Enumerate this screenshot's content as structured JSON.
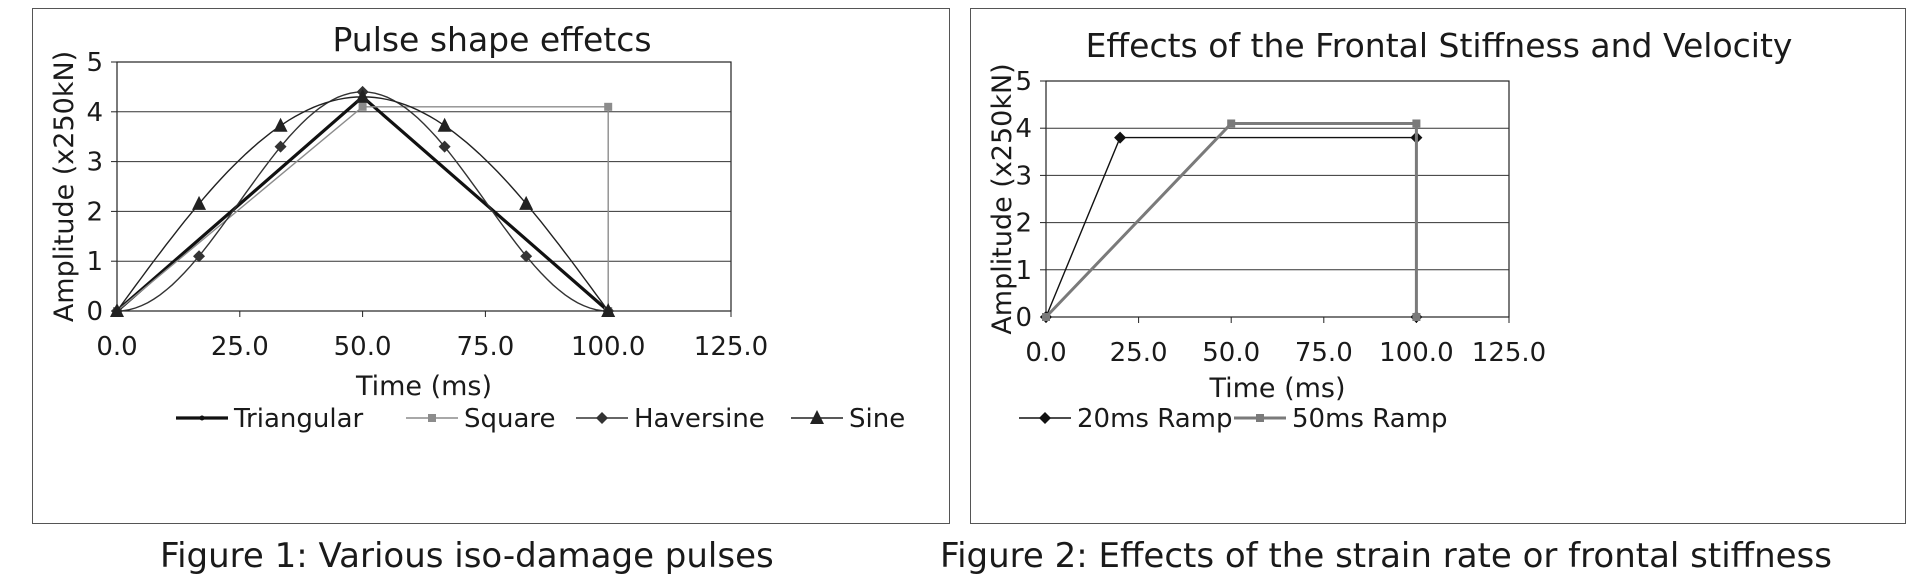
{
  "chart_data": [
    {
      "type": "line",
      "title": "Pulse shape effetcs",
      "xlabel": "Time (ms)",
      "ylabel": "Amplitude (x250kN)",
      "xlim": [
        0,
        125
      ],
      "ylim": [
        0,
        5
      ],
      "xticks": [
        "0.0",
        "25.0",
        "50.0",
        "75.0",
        "100.0",
        "125.0"
      ],
      "yticks": [
        "0",
        "1",
        "2",
        "3",
        "4",
        "5"
      ],
      "grid": "horizontal",
      "legend": "bottom",
      "series": [
        {
          "name": "Triangular",
          "color": "#111111",
          "marker": "dot",
          "x": [
            0,
            50,
            100
          ],
          "y": [
            0,
            4.3,
            0
          ]
        },
        {
          "name": "Square",
          "color": "#8c8c8c",
          "marker": "square",
          "x": [
            0,
            50,
            100,
            100
          ],
          "y": [
            0,
            4.1,
            4.1,
            0
          ]
        },
        {
          "name": "Haversine",
          "color": "#333333",
          "marker": "diamond",
          "x": [
            0,
            16.7,
            33.3,
            50,
            66.7,
            83.3,
            100
          ],
          "y": [
            0,
            1.1,
            3.3,
            4.4,
            3.3,
            1.1,
            0
          ]
        },
        {
          "name": "Sine",
          "color": "#222222",
          "marker": "triangle",
          "x": [
            0,
            16.7,
            33.3,
            50,
            66.7,
            83.3,
            100
          ],
          "y": [
            0,
            2.15,
            3.72,
            4.3,
            3.72,
            2.15,
            0
          ]
        }
      ]
    },
    {
      "type": "line",
      "title": "Effects of the Frontal Stiffness and Velocity",
      "xlabel": "Time (ms)",
      "ylabel": "Amplitude (x250kN)",
      "xlim": [
        0,
        125
      ],
      "ylim": [
        0,
        5
      ],
      "xticks": [
        "0.0",
        "25.0",
        "50.0",
        "75.0",
        "100.0",
        "125.0"
      ],
      "yticks": [
        "0",
        "1",
        "2",
        "3",
        "4",
        "5"
      ],
      "grid": "horizontal",
      "legend": "bottom",
      "series": [
        {
          "name": "20ms Ramp",
          "color": "#111111",
          "marker": "diamond",
          "x": [
            0,
            20,
            100,
            100
          ],
          "y": [
            0,
            3.8,
            3.8,
            0
          ]
        },
        {
          "name": "50ms Ramp",
          "color": "#7a7a7a",
          "marker": "square",
          "x": [
            0,
            50,
            100,
            100
          ],
          "y": [
            0,
            4.1,
            4.1,
            0
          ]
        }
      ]
    }
  ],
  "captions": {
    "fig1": "Figure 1: Various iso-damage pulses",
    "fig2": "Figure 2: Effects of the strain rate or frontal stiffness"
  }
}
